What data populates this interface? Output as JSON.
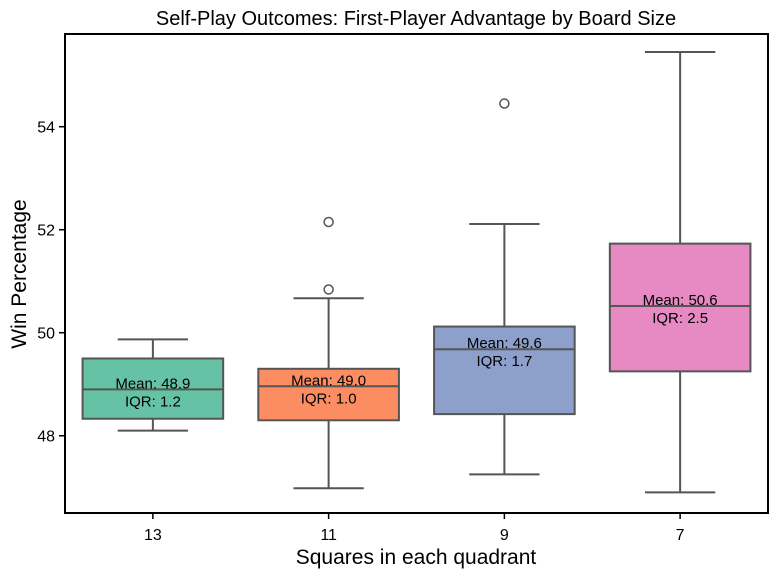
{
  "chart_data": {
    "type": "box",
    "title": "Self-Play Outcomes: First-Player Advantage by Board Size",
    "xlabel": "Squares in each quadrant",
    "ylabel": "Win Percentage",
    "categories": [
      "13",
      "11",
      "9",
      "7"
    ],
    "ylim": [
      46.5,
      55.8
    ],
    "yticks": [
      48,
      50,
      52,
      54
    ],
    "grid": false,
    "boxes": [
      {
        "category": "13",
        "whisker_low": 48.1,
        "q1": 48.33,
        "median": 48.9,
        "q3": 49.5,
        "whisker_high": 49.87,
        "outliers": [],
        "annotation_mean": "Mean: 48.9",
        "annotation_iqr": "IQR: 1.2",
        "color": "#66c2a5"
      },
      {
        "category": "11",
        "whisker_low": 46.98,
        "q1": 48.3,
        "median": 48.96,
        "q3": 49.3,
        "whisker_high": 50.67,
        "outliers": [
          52.15,
          50.84
        ],
        "annotation_mean": "Mean: 49.0",
        "annotation_iqr": "IQR: 1.0",
        "color": "#fc8d62"
      },
      {
        "category": "9",
        "whisker_low": 47.25,
        "q1": 48.42,
        "median": 49.68,
        "q3": 50.12,
        "whisker_high": 52.11,
        "outliers": [
          54.45
        ],
        "annotation_mean": "Mean: 49.6",
        "annotation_iqr": "IQR: 1.7",
        "color": "#8da0cb"
      },
      {
        "category": "7",
        "whisker_low": 46.9,
        "q1": 49.25,
        "median": 50.52,
        "q3": 51.73,
        "whisker_high": 55.45,
        "outliers": [],
        "annotation_mean": "Mean: 50.6",
        "annotation_iqr": "IQR: 2.5",
        "color": "#e78ac3"
      }
    ]
  }
}
